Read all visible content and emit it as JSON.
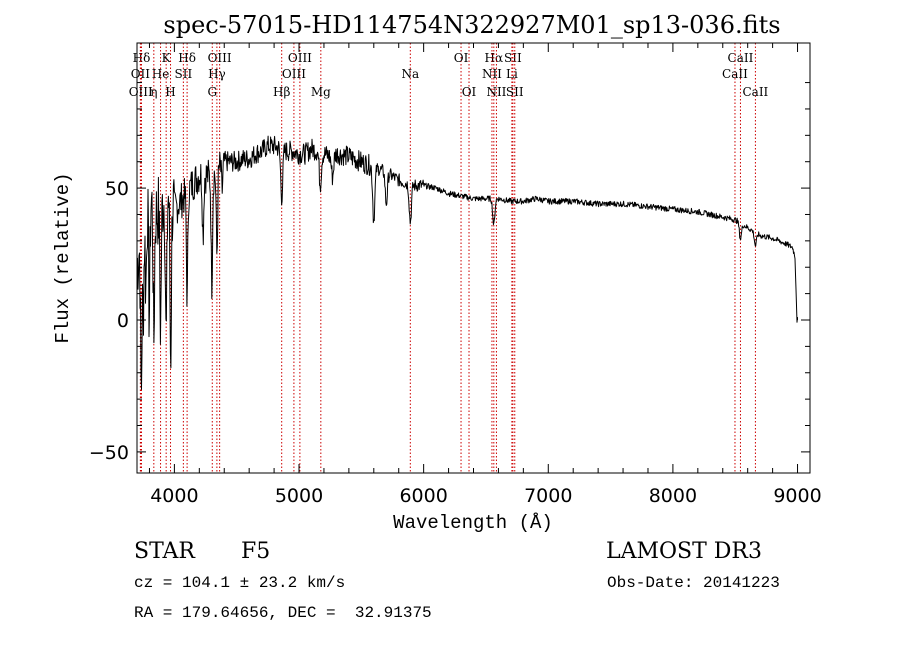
{
  "chart_data": {
    "type": "line",
    "title": "spec-57015-HD114754N322927M01_sp13-036.fits",
    "xlabel": "Wavelength (Å)",
    "ylabel": "Flux (relative)",
    "xlim": [
      3700,
      9100
    ],
    "ylim": [
      -58,
      105
    ],
    "xticks": [
      4000,
      5000,
      6000,
      7000,
      8000,
      9000
    ],
    "xtick_labels": [
      "4000",
      "5000",
      "6000",
      "7000",
      "8000",
      "9000"
    ],
    "yticks": [
      -50,
      0,
      50
    ],
    "ytick_labels": [
      "−50",
      "0",
      "50"
    ],
    "grid": false,
    "series": [
      {
        "name": "flux",
        "color": "#000000",
        "anchors": [
          [
            3700,
            20
          ],
          [
            3750,
            40
          ],
          [
            3800,
            48
          ],
          [
            3850,
            40
          ],
          [
            3900,
            44
          ],
          [
            3950,
            48
          ],
          [
            4000,
            42
          ],
          [
            4050,
            45
          ],
          [
            4100,
            48
          ],
          [
            4150,
            52
          ],
          [
            4200,
            55
          ],
          [
            4250,
            55
          ],
          [
            4300,
            54
          ],
          [
            4350,
            57
          ],
          [
            4400,
            60
          ],
          [
            4450,
            60
          ],
          [
            4500,
            60
          ],
          [
            4550,
            61
          ],
          [
            4600,
            61
          ],
          [
            4650,
            63
          ],
          [
            4700,
            64
          ],
          [
            4750,
            66
          ],
          [
            4800,
            66
          ],
          [
            4850,
            65
          ],
          [
            4900,
            64
          ],
          [
            4950,
            64
          ],
          [
            5000,
            63
          ],
          [
            5050,
            63
          ],
          [
            5100,
            65
          ],
          [
            5150,
            64
          ],
          [
            5200,
            63
          ],
          [
            5250,
            62
          ],
          [
            5300,
            63
          ],
          [
            5400,
            62
          ],
          [
            5500,
            60
          ],
          [
            5600,
            58
          ],
          [
            5700,
            56
          ],
          [
            5800,
            53
          ],
          [
            5900,
            51
          ],
          [
            6000,
            51
          ],
          [
            6100,
            50
          ],
          [
            6200,
            48
          ],
          [
            6300,
            47
          ],
          [
            6400,
            46
          ],
          [
            6500,
            46
          ],
          [
            6600,
            46
          ],
          [
            6700,
            45
          ],
          [
            6800,
            45
          ],
          [
            6900,
            46
          ],
          [
            7000,
            45
          ],
          [
            7200,
            45
          ],
          [
            7400,
            44
          ],
          [
            7600,
            44
          ],
          [
            7800,
            43
          ],
          [
            8000,
            42
          ],
          [
            8200,
            41
          ],
          [
            8400,
            39
          ],
          [
            8500,
            38
          ],
          [
            8600,
            35
          ],
          [
            8700,
            32
          ],
          [
            8800,
            31
          ],
          [
            8900,
            29
          ],
          [
            8980,
            27
          ],
          [
            9000,
            0
          ]
        ],
        "absorption_features": [
          {
            "x": 3734,
            "depth": 60
          },
          {
            "x": 3750,
            "depth": 35
          },
          {
            "x": 3771,
            "depth": 30
          },
          {
            "x": 3798,
            "depth": 45
          },
          {
            "x": 3835,
            "depth": 50
          },
          {
            "x": 3889,
            "depth": 45
          },
          {
            "x": 3934,
            "depth": 55
          },
          {
            "x": 3970,
            "depth": 60
          },
          {
            "x": 4102,
            "depth": 40
          },
          {
            "x": 4230,
            "depth": 22
          },
          {
            "x": 4300,
            "depth": 40
          },
          {
            "x": 4341,
            "depth": 32
          },
          {
            "x": 4383,
            "depth": 10
          },
          {
            "x": 4861,
            "depth": 18
          },
          {
            "x": 5170,
            "depth": 12
          },
          {
            "x": 5269,
            "depth": 8
          },
          {
            "x": 5600,
            "depth": 20
          },
          {
            "x": 5700,
            "depth": 12
          },
          {
            "x": 5893,
            "depth": 14
          },
          {
            "x": 6563,
            "depth": 10
          },
          {
            "x": 8542,
            "depth": 6
          },
          {
            "x": 8662,
            "depth": 5
          }
        ]
      }
    ],
    "line_markers": [
      {
        "label": "Hδ",
        "x": 3736,
        "row": 1
      },
      {
        "label": "OII",
        "x": 3727,
        "row": 2
      },
      {
        "label": "OIII",
        "x": 3730,
        "row": 3
      },
      {
        "label": "K",
        "x": 3934,
        "row": 1
      },
      {
        "label": "He",
        "x": 3889,
        "row": 2
      },
      {
        "label": "η",
        "x": 3835,
        "row": 3
      },
      {
        "label": "H",
        "x": 3969,
        "row": 3
      },
      {
        "label": "Hδ",
        "x": 4102,
        "row": 1
      },
      {
        "label": "SII",
        "x": 4072,
        "row": 2
      },
      {
        "label": "OIII",
        "x": 4363,
        "row": 1
      },
      {
        "label": "Hγ",
        "x": 4341,
        "row": 2
      },
      {
        "label": "G",
        "x": 4304,
        "row": 3
      },
      {
        "label": "Hβ",
        "x": 4861,
        "row": 3
      },
      {
        "label": "OIII",
        "x": 5007,
        "row": 1
      },
      {
        "label": "OIII",
        "x": 4959,
        "row": 2
      },
      {
        "label": "Mg",
        "x": 5175,
        "row": 3
      },
      {
        "label": "Na",
        "x": 5893,
        "row": 2
      },
      {
        "label": "OI",
        "x": 6300,
        "row": 1
      },
      {
        "label": "OI",
        "x": 6364,
        "row": 3
      },
      {
        "label": "Hα",
        "x": 6563,
        "row": 1
      },
      {
        "label": "SII",
        "x": 6716,
        "row": 1
      },
      {
        "label": "NII",
        "x": 6548,
        "row": 2
      },
      {
        "label": "Li",
        "x": 6708,
        "row": 2
      },
      {
        "label": "NII",
        "x": 6584,
        "row": 3
      },
      {
        "label": "SII",
        "x": 6731,
        "row": 3
      },
      {
        "label": "CaII",
        "x": 8542,
        "row": 1
      },
      {
        "label": "CaII",
        "x": 8498,
        "row": 2
      },
      {
        "label": "CaII",
        "x": 8662,
        "row": 3
      }
    ],
    "marker_line_color": "#cc0000"
  },
  "info": {
    "object_class": "STAR",
    "subclass": "F5",
    "survey": "LAMOST DR3",
    "cz": "cz = 104.1 ± 23.2 km/s",
    "obs_date": "Obs-Date: 20141223",
    "coords": "RA = 179.64656, DEC =  32.91375"
  }
}
